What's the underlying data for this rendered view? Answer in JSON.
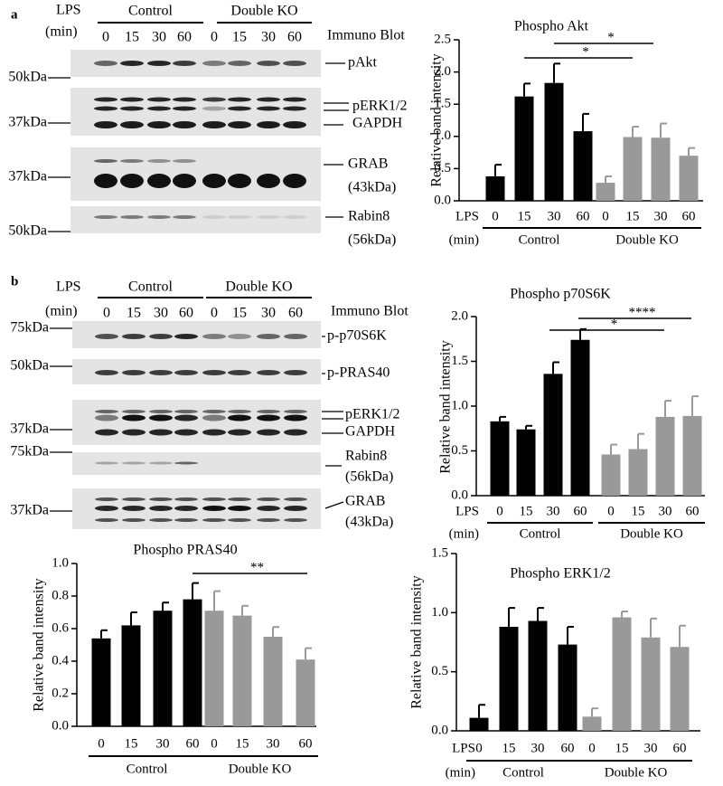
{
  "blots": [
    {
      "panel": "a",
      "lps_label": "LPS",
      "min_label": "(min)",
      "groups": [
        "Control",
        "Double KO"
      ],
      "lanes": [
        "0",
        "15",
        "30",
        "60",
        "0",
        "15",
        "30",
        "60"
      ],
      "method": "Immuno Blot",
      "markers": [
        "50kDa",
        "37kDa",
        "37kDa",
        "50kDa"
      ],
      "labels": [
        "pAkt",
        "pERK1/2",
        "GAPDH",
        "GRAB",
        "(43kDa)",
        "Rabin8",
        "(56kDa)"
      ]
    },
    {
      "panel": "b",
      "lps_label": "LPS",
      "min_label": "(min)",
      "groups": [
        "Control",
        "Double KO"
      ],
      "lanes": [
        "0",
        "15",
        "30",
        "60",
        "0",
        "15",
        "30",
        "60"
      ],
      "method": "Immuno Blot",
      "markers": [
        "75kDa",
        "50kDa",
        "37kDa",
        "75kDa",
        "37kDa"
      ],
      "labels": [
        "p-p70S6K",
        "p-PRAS40",
        "pERK1/2",
        "GAPDH",
        "Rabin8",
        "(56kDa)",
        "GRAB",
        "(43kDa)"
      ]
    }
  ],
  "chart_data": [
    {
      "type": "bar",
      "title": "Phospho Akt",
      "ylabel": "Relative band intensity",
      "ylim": [
        0,
        2.5
      ],
      "yticks": [
        {
          "value": 0,
          "label": "0.0"
        },
        0.5,
        {
          "value": 1,
          "label": "1.0"
        },
        1.5,
        {
          "value": 2,
          "label": "2.0"
        },
        2.5
      ],
      "x_row_labels": [
        "LPS",
        "(min)"
      ],
      "categories": [
        "0",
        "15",
        "30",
        "60"
      ],
      "series": [
        {
          "name": "Control",
          "color": "#000000",
          "values": [
            0.38,
            1.62,
            1.83,
            1.08
          ],
          "errors": [
            0.18,
            0.2,
            0.3,
            0.27
          ]
        },
        {
          "name": "Double KO",
          "color": "#999999",
          "values": [
            0.28,
            0.99,
            0.98,
            0.7
          ],
          "errors": [
            0.1,
            0.16,
            0.22,
            0.12
          ]
        }
      ],
      "annotations": [
        "*",
        "*"
      ]
    },
    {
      "type": "bar",
      "title": "Phospho p70S6K",
      "ylabel": "Relative band intensity",
      "ylim": [
        0,
        2.0
      ],
      "yticks": [
        {
          "value": 0,
          "label": "0.0"
        },
        0.5,
        {
          "value": 1,
          "label": "1.0"
        },
        1.5,
        {
          "value": 2,
          "label": "2.0"
        }
      ],
      "x_row_labels": [
        "LPS",
        "(min)"
      ],
      "categories": [
        "0",
        "15",
        "30",
        "60"
      ],
      "series": [
        {
          "name": "Control",
          "color": "#000000",
          "values": [
            0.83,
            0.74,
            1.36,
            1.74
          ],
          "errors": [
            0.05,
            0.04,
            0.13,
            0.12
          ]
        },
        {
          "name": "Double KO",
          "color": "#999999",
          "values": [
            0.46,
            0.52,
            0.88,
            0.89
          ],
          "errors": [
            0.11,
            0.17,
            0.18,
            0.22
          ]
        }
      ],
      "annotations": [
        "*",
        "****"
      ]
    },
    {
      "type": "bar",
      "title": "Phospho PRAS40",
      "ylabel": "Relative band intensity",
      "ylim": [
        0,
        1.0
      ],
      "yticks": [
        {
          "value": 0,
          "label": "0.0"
        },
        0.2,
        0.4,
        0.6,
        0.8,
        {
          "value": 1,
          "label": "1.0"
        }
      ],
      "categories": [
        "0",
        "15",
        "30",
        "60"
      ],
      "series": [
        {
          "name": "Control",
          "color": "#000000",
          "values": [
            0.54,
            0.62,
            0.71,
            0.78
          ],
          "errors": [
            0.05,
            0.08,
            0.05,
            0.1
          ]
        },
        {
          "name": "Double KO",
          "color": "#999999",
          "values": [
            0.71,
            0.68,
            0.55,
            0.41
          ],
          "errors": [
            0.12,
            0.06,
            0.06,
            0.07
          ]
        }
      ],
      "annotations": [
        "**"
      ]
    },
    {
      "type": "bar",
      "title": "Phospho ERK1/2",
      "ylabel": "Relative band intensity",
      "ylim": [
        0,
        1.5
      ],
      "yticks": [
        {
          "value": 0,
          "label": "0.0"
        },
        0.5,
        {
          "value": 1,
          "label": "1.0"
        },
        1.5
      ],
      "x_row_labels": [
        "LPS",
        "(min)"
      ],
      "categories": [
        "0",
        "15",
        "30",
        "60"
      ],
      "series": [
        {
          "name": "Control",
          "color": "#000000",
          "values": [
            0.11,
            0.88,
            0.93,
            0.73
          ],
          "errors": [
            0.11,
            0.16,
            0.11,
            0.15
          ]
        },
        {
          "name": "Double KO",
          "color": "#999999",
          "values": [
            0.12,
            0.96,
            0.79,
            0.71
          ],
          "errors": [
            0.07,
            0.05,
            0.16,
            0.18
          ]
        }
      ],
      "annotations": []
    }
  ]
}
